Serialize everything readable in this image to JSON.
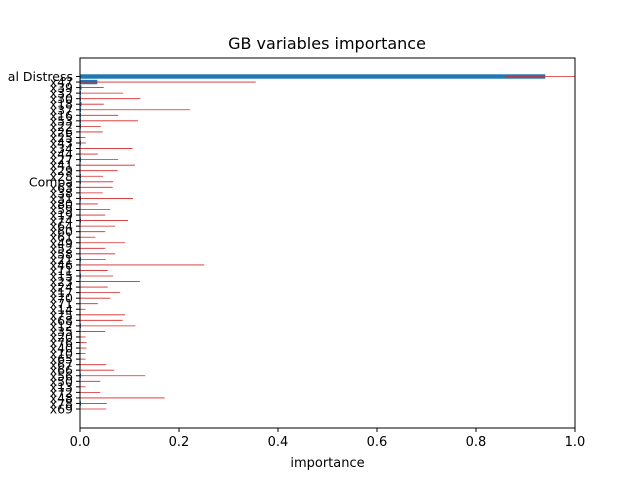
{
  "chart_data": {
    "type": "bar",
    "orientation": "horizontal",
    "title": "GB variables importance",
    "xlabel": "importance",
    "ylabel": "",
    "xlim": [
      0,
      1.0
    ],
    "xticks": [
      "0.0",
      "0.2",
      "0.4",
      "0.6",
      "0.8",
      "1.0"
    ],
    "grid": false,
    "colors": {
      "bar": "#1f77b4",
      "error": "#d62728"
    },
    "categories": [
      "al Distress",
      "x47",
      "x39",
      "x32",
      "x30",
      "x18",
      "x37",
      "x16",
      "x53",
      "x22",
      "x26",
      "x25",
      "x43",
      "x34",
      "x44",
      "x27",
      "x41",
      "x29",
      "x28",
      "Compa",
      "x63",
      "x38",
      "x31",
      "x80",
      "x59",
      "x19",
      "x74",
      "x64",
      "x60",
      "x61",
      "x49",
      "x52",
      "x58",
      "x21",
      "x46",
      "x11",
      "x15",
      "x23",
      "x24",
      "x17",
      "x70",
      "x71",
      "x14",
      "x75",
      "x68",
      "x12",
      "x35",
      "x20",
      "x76",
      "x40",
      "x10",
      "x65",
      "x67",
      "x66",
      "x56",
      "x50",
      "x13",
      "x72",
      "x48",
      "x78",
      "x69"
    ],
    "values": [
      0.94,
      0.035,
      0.003,
      0.002,
      0.002,
      0.003,
      0.002,
      0.002,
      0.002,
      0.002,
      0.001,
      0.001,
      0.002,
      0.001,
      0.001,
      0.002,
      0.001,
      0.001,
      0.002,
      0.002,
      0.001,
      0.001,
      0.002,
      0.001,
      0.001,
      0.001,
      0.002,
      0.001,
      0.001,
      0.001,
      0.001,
      0.001,
      0.001,
      0.002,
      0.001,
      0.001,
      0.002,
      0.001,
      0.001,
      0.001,
      0.001,
      0.001,
      0.001,
      0.001,
      0.001,
      0.002,
      0.001,
      0.001,
      0.001,
      0.001,
      0.001,
      0.001,
      0.001,
      0.001,
      0.002,
      0.001,
      0.001,
      0.001,
      0.001,
      0.002,
      0.001
    ],
    "errors": [
      0.08,
      0.32,
      0.045,
      0.085,
      0.12,
      0.045,
      0.22,
      0.075,
      0.115,
      0.04,
      0.045,
      0.01,
      0.01,
      0.105,
      0.035,
      0.075,
      0.11,
      0.075,
      0.045,
      0.065,
      0.065,
      0.045,
      0.105,
      0.035,
      0.06,
      0.05,
      0.095,
      0.07,
      0.05,
      0.03,
      0.09,
      0.05,
      0.07,
      0.05,
      0.25,
      0.055,
      0.065,
      0.12,
      0.055,
      0.08,
      0.06,
      0.035,
      0.01,
      0.09,
      0.085,
      0.11,
      0.05,
      0.01,
      0.012,
      0.012,
      0.01,
      0.01,
      0.052,
      0.068,
      0.13,
      0.04,
      0.01,
      0.04,
      0.17,
      0.052,
      0.052
    ]
  }
}
